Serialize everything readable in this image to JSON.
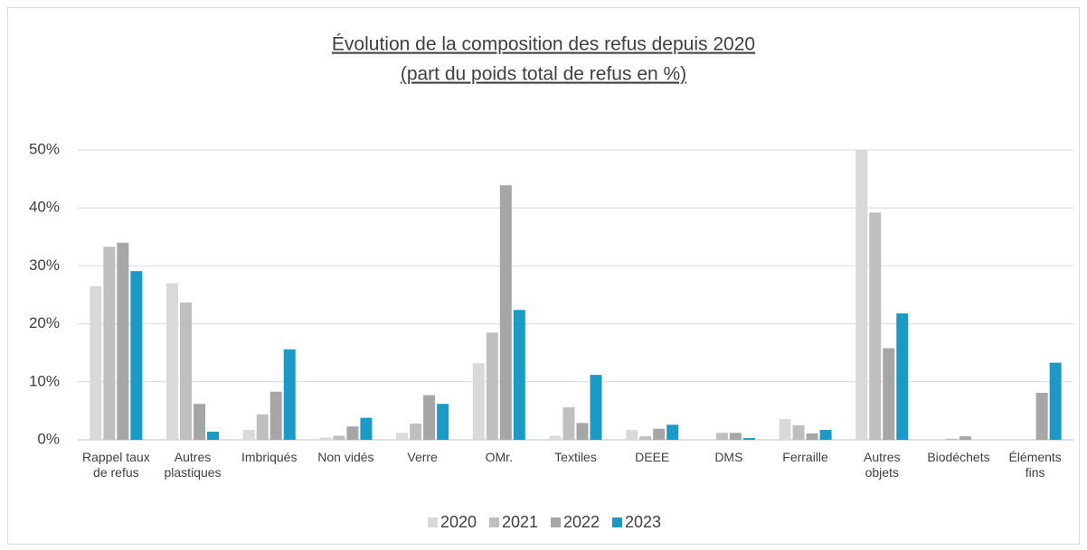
{
  "chart_data": {
    "type": "bar",
    "title": "Évolution de la composition des refus depuis 2020",
    "subtitle": "(part du poids total de refus en %)",
    "categories": [
      "Rappel taux\nde refus",
      "Autres\nplastiques",
      "Imbriqués",
      "Non vidés",
      "Verre",
      "OMr.",
      "Textiles",
      "DEEE",
      "DMS",
      "Ferraille",
      "Autres\nobjets",
      "Biodéchets",
      "Éléments\nfins"
    ],
    "series": [
      {
        "name": "2020",
        "color": "#d9d9d9",
        "values": [
          26.5,
          27,
          1.7,
          0.4,
          1.2,
          13.2,
          0.7,
          1.7,
          0,
          3.6,
          50,
          0,
          0
        ]
      },
      {
        "name": "2021",
        "color": "#bfbfbf",
        "values": [
          33.3,
          23.7,
          4.4,
          0.7,
          2.8,
          18.5,
          5.6,
          0.6,
          1.2,
          2.5,
          39.2,
          0.2,
          0
        ]
      },
      {
        "name": "2022",
        "color": "#a6a6a6",
        "values": [
          34,
          6.2,
          8.3,
          2.3,
          7.7,
          43.9,
          2.9,
          1.9,
          1.2,
          1.1,
          15.8,
          0.6,
          8.1
        ]
      },
      {
        "name": "2023",
        "color": "#1a9bc7",
        "values": [
          29.1,
          1.4,
          15.6,
          3.8,
          6.2,
          22.4,
          11.2,
          2.6,
          0.3,
          1.7,
          21.8,
          0,
          13.3
        ]
      }
    ],
    "ylim": [
      0,
      50
    ],
    "yticks": [
      {
        "value": 0,
        "label": "0%"
      },
      {
        "value": 10,
        "label": "10%"
      },
      {
        "value": 20,
        "label": "20%"
      },
      {
        "value": 30,
        "label": "30%"
      },
      {
        "value": 40,
        "label": "40%"
      },
      {
        "value": 50,
        "label": "50%"
      }
    ],
    "grid": true,
    "legend": "bottom"
  }
}
